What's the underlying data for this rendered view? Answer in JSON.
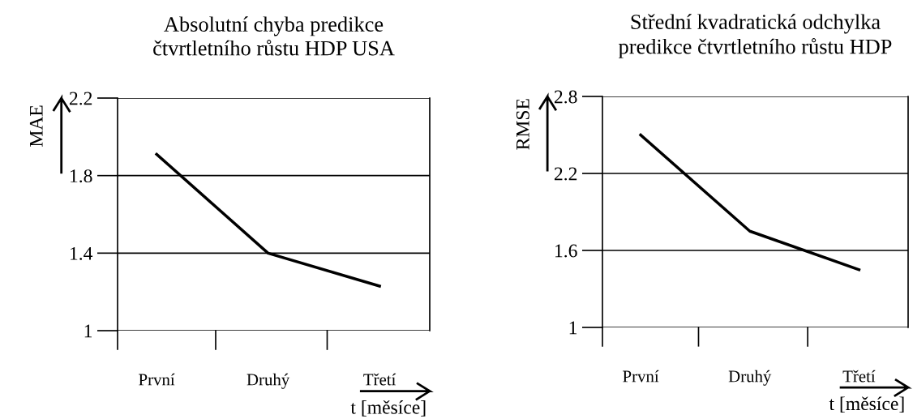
{
  "chart_data": [
    {
      "type": "line",
      "title": "Absolutní chyba predikce\nčtvrtletního růstu HDP USA",
      "ylabel": "MAE",
      "xlabel": "t [měsíce]",
      "categories": [
        "První",
        "Druhý",
        "Třetí"
      ],
      "series": [
        {
          "color": "#000000",
          "values": [
            1.91,
            1.4,
            1.23
          ]
        }
      ],
      "ylim": [
        1,
        2.2
      ],
      "yticks": [
        1,
        1.4,
        1.8,
        2.2
      ],
      "grid": "y",
      "marker": "none",
      "line_style": "solid"
    },
    {
      "type": "line",
      "title": "Střední kvadratická odchylka\npredikce čtvrtletního růstu HDP",
      "ylabel": "RMSE",
      "xlabel": "t [měsíce]",
      "categories": [
        "První",
        "Druhý",
        "Třetí"
      ],
      "series": [
        {
          "color": "#000000",
          "values": [
            2.5,
            1.75,
            1.45
          ]
        }
      ],
      "ylim": [
        1,
        2.8
      ],
      "yticks": [
        1,
        1.6,
        2.2,
        2.8
      ],
      "grid": "y",
      "marker": "none",
      "line_style": "solid"
    }
  ]
}
